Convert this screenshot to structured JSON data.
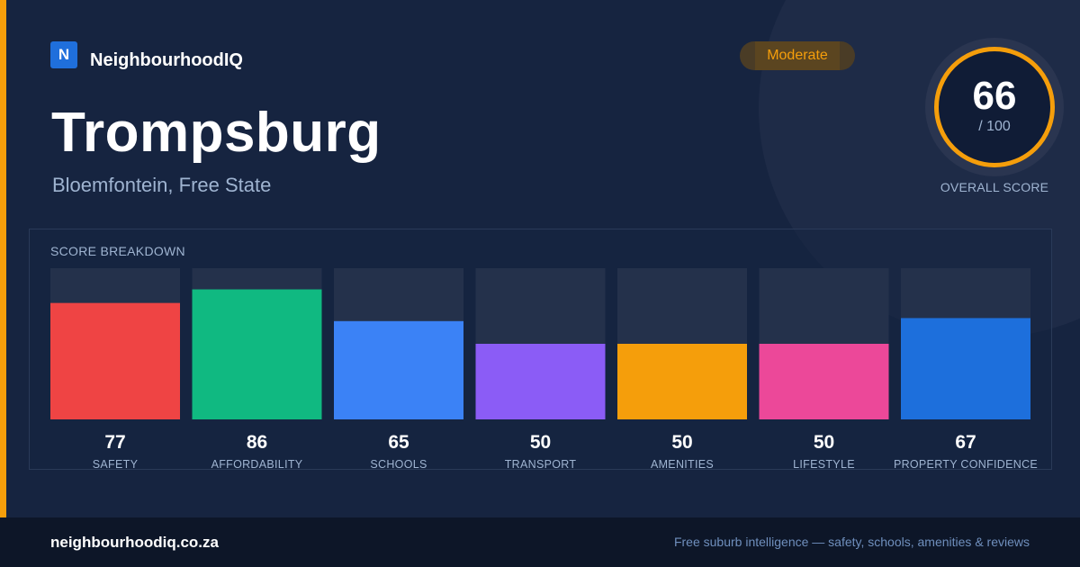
{
  "brand": {
    "logo_letter": "N",
    "name": "NeighbourhoodIQ"
  },
  "suburb": {
    "name": "Trompsburg",
    "location": "Bloemfontein, Free State"
  },
  "rating_badge": "Moderate",
  "overall": {
    "score": "66",
    "max": "/ 100",
    "caption": "OVERALL SCORE"
  },
  "breakdown_title": "SCORE BREAKDOWN",
  "chart_data": {
    "type": "bar",
    "title": "SCORE BREAKDOWN",
    "ylim": [
      0,
      100
    ],
    "categories": [
      "SAFETY",
      "AFFORDABILITY",
      "SCHOOLS",
      "TRANSPORT",
      "AMENITIES",
      "LIFESTYLE",
      "PROPERTY CONFIDENCE"
    ],
    "values": [
      77,
      86,
      65,
      50,
      50,
      50,
      67
    ],
    "colors": [
      "#ef4444",
      "#10b981",
      "#3b82f6",
      "#8b5cf6",
      "#f59e0b",
      "#ec4899",
      "#1d6fdc"
    ]
  },
  "footer": {
    "url": "neighbourhoodiq.co.za",
    "tagline": "Free suburb intelligence — safety, schools, amenities & reviews"
  },
  "colors": {
    "accent": "#f59e0b",
    "background": "#162440",
    "track": "#24314b"
  }
}
